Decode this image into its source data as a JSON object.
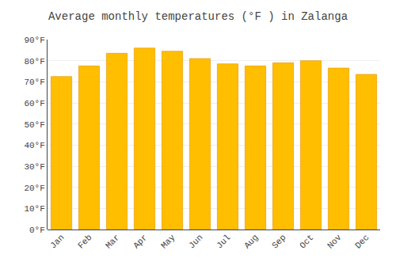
{
  "chart_data": {
    "type": "bar",
    "title": "Average monthly temperatures (°F ) in Zalanga",
    "categories": [
      "Jan",
      "Feb",
      "Mar",
      "Apr",
      "May",
      "Jun",
      "Jul",
      "Aug",
      "Sep",
      "Oct",
      "Nov",
      "Dec"
    ],
    "values": [
      72.5,
      77.5,
      83.5,
      86.0,
      84.5,
      81.0,
      78.5,
      77.5,
      79.0,
      80.0,
      76.5,
      73.5
    ],
    "color": "#FFBE00",
    "ylim": [
      0,
      90
    ],
    "yticks": [
      {
        "value": 0,
        "label": "0°F"
      },
      {
        "value": 10,
        "label": "10°F"
      },
      {
        "value": 20,
        "label": "20°F"
      },
      {
        "value": 30,
        "label": "30°F"
      },
      {
        "value": 40,
        "label": "40°F"
      },
      {
        "value": 50,
        "label": "50°F"
      },
      {
        "value": 60,
        "label": "60°F"
      },
      {
        "value": 70,
        "label": "70°F"
      },
      {
        "value": 80,
        "label": "80°F"
      },
      {
        "value": 90,
        "label": "90°F"
      }
    ],
    "grid": true
  }
}
